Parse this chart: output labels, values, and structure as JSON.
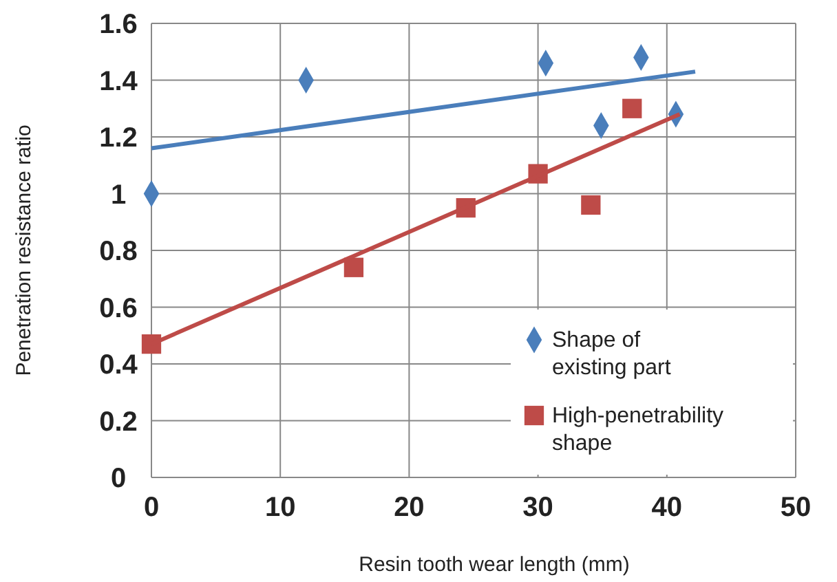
{
  "chart_data": {
    "type": "scatter",
    "xlabel": "Resin tooth wear length (mm)",
    "ylabel": "Penetration resistance ratio",
    "xlim": [
      0,
      50
    ],
    "xticks": [
      0,
      10,
      20,
      30,
      40,
      50
    ],
    "ylim": [
      0,
      1.6
    ],
    "yticks": [
      0,
      0.2,
      0.4,
      0.6,
      0.8,
      1,
      1.2,
      1.4,
      1.6
    ],
    "grid": true,
    "legend": "bottom right",
    "series": [
      {
        "name": "Shape of existing part",
        "marker": "diamond",
        "color": "#4a7ebb",
        "x": [
          0,
          12,
          30.6,
          34.9,
          38,
          40.7
        ],
        "values": [
          1.0,
          1.4,
          1.46,
          1.24,
          1.48,
          1.28
        ]
      },
      {
        "name": "High-penetrability shape",
        "marker": "square",
        "color": "#be4b48",
        "x": [
          0,
          15.7,
          24.4,
          30,
          34.1,
          37.3
        ],
        "values": [
          0.47,
          0.74,
          0.95,
          1.07,
          0.96,
          1.3
        ]
      },
      {
        "type": "line",
        "marker": "none",
        "line_style": "solid",
        "color": "#4a7ebb",
        "x": [
          0,
          42.2
        ],
        "values": [
          1.16,
          1.43
        ]
      },
      {
        "type": "line",
        "marker": "none",
        "line_style": "solid",
        "color": "#be4b48",
        "x": [
          0,
          41
        ],
        "values": [
          0.47,
          1.28
        ]
      }
    ]
  }
}
